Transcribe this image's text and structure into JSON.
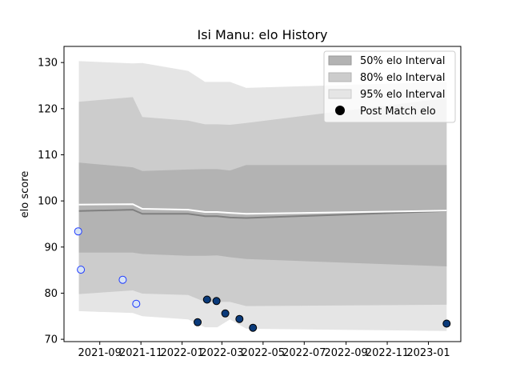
{
  "chart_data": {
    "type": "area",
    "title": "Isi Manu: elo History",
    "xlabel": "",
    "ylabel": "elo score",
    "ylim": [
      69.5,
      133.5
    ],
    "xlim": [
      "2021-07-10",
      "2023-02-18"
    ],
    "grid": false,
    "legend_position": "top-right",
    "yticks": [
      70,
      80,
      90,
      100,
      110,
      120,
      130
    ],
    "xticks": [
      "2021-09",
      "2021-11",
      "2022-01",
      "2022-03",
      "2022-05",
      "2022-07",
      "2022-09",
      "2022-11",
      "2023-01"
    ],
    "colors": {
      "band95": "#e5e5e5",
      "band80": "#cccccc",
      "band50": "#b3b3b3",
      "median_line": "#808080",
      "mean_line": "#ffffff",
      "marker_early_fill": "#d8e4f4",
      "marker_early_edge": "#1f3bff",
      "marker_late_fill": "#0a3a7a",
      "marker_late_edge": "#000000"
    },
    "x": [
      "2021-08-01",
      "2021-10-20",
      "2021-11-03",
      "2022-01-10",
      "2022-02-04",
      "2022-02-22",
      "2022-03-13",
      "2022-04-06",
      "2023-01-28"
    ],
    "series": [
      {
        "name": "95% elo Interval",
        "lower": [
          76.1,
          75.7,
          75.0,
          74.3,
          72.6,
          72.6,
          74.3,
          72.3,
          71.8
        ],
        "upper": [
          130.3,
          129.8,
          129.9,
          128.2,
          125.8,
          125.8,
          125.8,
          124.5,
          125.8
        ]
      },
      {
        "name": "80% elo Interval",
        "lower": [
          79.8,
          80.6,
          79.9,
          79.6,
          78.1,
          78.1,
          78.1,
          77.2,
          77.5
        ],
        "upper": [
          121.5,
          122.5,
          118.2,
          117.4,
          116.6,
          116.6,
          116.5,
          116.9,
          122.3
        ]
      },
      {
        "name": "50% elo Interval",
        "lower": [
          88.8,
          88.8,
          88.5,
          88.1,
          88.1,
          88.2,
          87.8,
          87.4,
          85.8
        ],
        "upper": [
          108.3,
          107.3,
          106.5,
          106.8,
          106.9,
          106.9,
          106.6,
          107.8,
          107.8
        ]
      }
    ],
    "median": [
      97.8,
      98.1,
      97.2,
      97.2,
      96.7,
      96.7,
      96.4,
      96.3,
      97.8
    ],
    "mean": [
      99.2,
      99.3,
      98.3,
      98.1,
      97.6,
      97.6,
      97.4,
      97.2,
      97.9
    ],
    "post_match": {
      "name": "Post Match elo",
      "points": [
        {
          "x": "2021-07-31",
          "y": 93.4,
          "group": "early"
        },
        {
          "x": "2021-08-04",
          "y": 85.1,
          "group": "early"
        },
        {
          "x": "2021-10-05",
          "y": 82.9,
          "group": "early"
        },
        {
          "x": "2021-10-25",
          "y": 77.7,
          "group": "early"
        },
        {
          "x": "2022-01-24",
          "y": 73.7,
          "group": "late"
        },
        {
          "x": "2022-02-07",
          "y": 78.6,
          "group": "late"
        },
        {
          "x": "2022-02-21",
          "y": 78.3,
          "group": "late"
        },
        {
          "x": "2022-03-06",
          "y": 75.6,
          "group": "late"
        },
        {
          "x": "2022-03-27",
          "y": 74.4,
          "group": "late"
        },
        {
          "x": "2022-04-16",
          "y": 72.5,
          "group": "late"
        },
        {
          "x": "2023-01-28",
          "y": 73.4,
          "group": "late"
        }
      ]
    }
  }
}
